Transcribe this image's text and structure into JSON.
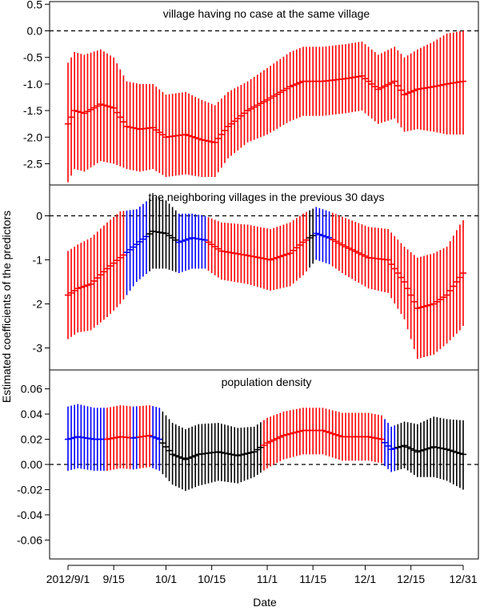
{
  "figure": {
    "ylabel": "Estimated coefficients of the predictors",
    "xlabel": "Date",
    "x_ticks": [
      {
        "day": 0,
        "label": "2012/9/1"
      },
      {
        "day": 14,
        "label": "9/15"
      },
      {
        "day": 30,
        "label": "10/1"
      },
      {
        "day": 44,
        "label": "10/15"
      },
      {
        "day": 61,
        "label": "11/1"
      },
      {
        "day": 75,
        "label": "11/15"
      },
      {
        "day": 91,
        "label": "12/1"
      },
      {
        "day": 105,
        "label": "12/15"
      },
      {
        "day": 121,
        "label": "12/31"
      }
    ],
    "colors": {
      "significant": "#ff0000",
      "marginal": "#0000ff",
      "nonsignificant": "#000000"
    }
  },
  "chart_data": [
    {
      "type": "errorbar",
      "title": "village having no case at the same village",
      "x_unit": "date (2012/9/1 – 12/31)",
      "ylim": [
        -2.9,
        0.55
      ],
      "yticks": [
        0.5,
        0.0,
        -0.5,
        -1.0,
        -1.5,
        -2.0,
        -2.5
      ],
      "ytick_labels": [
        "0.5",
        "0.0",
        "-0.5",
        "-1.0",
        "-1.5",
        "-2.0",
        "-2.5"
      ],
      "reference_line": 0,
      "knots": [
        {
          "day": 0,
          "est": -1.75,
          "lo": -2.85,
          "hi": -0.6
        },
        {
          "day": 2,
          "est": -1.5,
          "lo": -2.6,
          "hi": -0.4
        },
        {
          "day": 5,
          "est": -1.55,
          "lo": -2.65,
          "hi": -0.45
        },
        {
          "day": 10,
          "est": -1.38,
          "lo": -2.45,
          "hi": -0.35
        },
        {
          "day": 14,
          "est": -1.45,
          "lo": -2.5,
          "hi": -0.5
        },
        {
          "day": 18,
          "est": -1.8,
          "lo": -2.6,
          "hi": -0.95
        },
        {
          "day": 22,
          "est": -1.85,
          "lo": -2.65,
          "hi": -1.0
        },
        {
          "day": 26,
          "est": -1.82,
          "lo": -2.6,
          "hi": -1.0
        },
        {
          "day": 30,
          "est": -2.0,
          "lo": -2.75,
          "hi": -1.2
        },
        {
          "day": 36,
          "est": -1.95,
          "lo": -2.7,
          "hi": -1.15
        },
        {
          "day": 41,
          "est": -2.05,
          "lo": -2.75,
          "hi": -1.3
        },
        {
          "day": 45,
          "est": -2.1,
          "lo": -2.75,
          "hi": -1.4
        },
        {
          "day": 49,
          "est": -1.8,
          "lo": -2.4,
          "hi": -1.15
        },
        {
          "day": 55,
          "est": -1.5,
          "lo": -2.1,
          "hi": -0.95
        },
        {
          "day": 61,
          "est": -1.3,
          "lo": -1.95,
          "hi": -0.7
        },
        {
          "day": 68,
          "est": -1.05,
          "lo": -1.7,
          "hi": -0.4
        },
        {
          "day": 72,
          "est": -0.95,
          "lo": -1.6,
          "hi": -0.3
        },
        {
          "day": 78,
          "est": -0.95,
          "lo": -1.6,
          "hi": -0.3
        },
        {
          "day": 85,
          "est": -0.9,
          "lo": -1.55,
          "hi": -0.25
        },
        {
          "day": 90,
          "est": -0.85,
          "lo": -1.5,
          "hi": -0.2
        },
        {
          "day": 95,
          "est": -1.1,
          "lo": -1.75,
          "hi": -0.45
        },
        {
          "day": 100,
          "est": -0.95,
          "lo": -1.65,
          "hi": -0.3
        },
        {
          "day": 103,
          "est": -1.2,
          "lo": -1.9,
          "hi": -0.5
        },
        {
          "day": 107,
          "est": -1.1,
          "lo": -1.85,
          "hi": -0.35
        },
        {
          "day": 112,
          "est": -1.05,
          "lo": -1.9,
          "hi": -0.2
        },
        {
          "day": 116,
          "est": -1.0,
          "lo": -1.95,
          "hi": -0.05
        },
        {
          "day": 121,
          "est": -0.95,
          "lo": -1.95,
          "hi": 0.0
        }
      ],
      "color_segments": [
        {
          "from": 0,
          "to": 121,
          "color": "significant"
        }
      ]
    },
    {
      "type": "errorbar",
      "title": "the neighboring villages in the previous 30 days",
      "x_unit": "date (2012/9/1 – 12/31)",
      "ylim": [
        -3.5,
        0.7
      ],
      "yticks": [
        0,
        -1,
        -2,
        -3
      ],
      "ytick_labels": [
        "0",
        "-1",
        "-2",
        "-3"
      ],
      "reference_line": 0,
      "knots": [
        {
          "day": 0,
          "est": -1.8,
          "lo": -2.8,
          "hi": -0.8
        },
        {
          "day": 3,
          "est": -1.65,
          "lo": -2.65,
          "hi": -0.65
        },
        {
          "day": 7,
          "est": -1.55,
          "lo": -2.6,
          "hi": -0.5
        },
        {
          "day": 12,
          "est": -1.2,
          "lo": -2.3,
          "hi": -0.15
        },
        {
          "day": 16,
          "est": -0.95,
          "lo": -2.0,
          "hi": 0.1
        },
        {
          "day": 21,
          "est": -0.65,
          "lo": -1.5,
          "hi": 0.15
        },
        {
          "day": 26,
          "est": -0.35,
          "lo": -1.2,
          "hi": 0.45
        },
        {
          "day": 30,
          "est": -0.4,
          "lo": -1.2,
          "hi": 0.35
        },
        {
          "day": 34,
          "est": -0.6,
          "lo": -1.3,
          "hi": 0.05
        },
        {
          "day": 38,
          "est": -0.5,
          "lo": -1.2,
          "hi": 0.05
        },
        {
          "day": 42,
          "est": -0.55,
          "lo": -1.2,
          "hi": 0.0
        },
        {
          "day": 47,
          "est": -0.8,
          "lo": -1.45,
          "hi": -0.15
        },
        {
          "day": 55,
          "est": -0.9,
          "lo": -1.55,
          "hi": -0.2
        },
        {
          "day": 62,
          "est": -1.0,
          "lo": -1.7,
          "hi": -0.3
        },
        {
          "day": 68,
          "est": -0.85,
          "lo": -1.6,
          "hi": -0.15
        },
        {
          "day": 72,
          "est": -0.6,
          "lo": -1.35,
          "hi": 0.05
        },
        {
          "day": 76,
          "est": -0.4,
          "lo": -1.0,
          "hi": 0.2
        },
        {
          "day": 80,
          "est": -0.5,
          "lo": -1.1,
          "hi": 0.1
        },
        {
          "day": 85,
          "est": -0.7,
          "lo": -1.35,
          "hi": -0.05
        },
        {
          "day": 92,
          "est": -0.95,
          "lo": -1.65,
          "hi": -0.25
        },
        {
          "day": 98,
          "est": -1.0,
          "lo": -1.75,
          "hi": -0.3
        },
        {
          "day": 103,
          "est": -1.5,
          "lo": -2.35,
          "hi": -0.7
        },
        {
          "day": 107,
          "est": -2.1,
          "lo": -3.25,
          "hi": -0.95
        },
        {
          "day": 112,
          "est": -2.0,
          "lo": -3.15,
          "hi": -0.85
        },
        {
          "day": 116,
          "est": -1.8,
          "lo": -2.9,
          "hi": -0.7
        },
        {
          "day": 120,
          "est": -1.4,
          "lo": -2.6,
          "hi": -0.2
        },
        {
          "day": 121,
          "est": -1.3,
          "lo": -2.5,
          "hi": -0.1
        }
      ],
      "color_segments": [
        {
          "from": 0,
          "to": 17,
          "color": "significant"
        },
        {
          "from": 18,
          "to": 24,
          "color": "marginal"
        },
        {
          "from": 25,
          "to": 33,
          "color": "nonsignificant"
        },
        {
          "from": 34,
          "to": 42,
          "color": "marginal"
        },
        {
          "from": 43,
          "to": 73,
          "color": "significant"
        },
        {
          "from": 74,
          "to": 75,
          "color": "nonsignificant"
        },
        {
          "from": 76,
          "to": 80,
          "color": "marginal"
        },
        {
          "from": 81,
          "to": 121,
          "color": "significant"
        }
      ]
    },
    {
      "type": "errorbar",
      "title": "population density",
      "x_unit": "date (2012/9/1 – 12/31)",
      "ylim": [
        -0.075,
        0.075
      ],
      "yticks": [
        0.06,
        0.04,
        0.02,
        0.0,
        -0.02,
        -0.04,
        -0.06
      ],
      "ytick_labels": [
        "0.06",
        "0.04",
        "0.02",
        "0.00",
        "-0.02",
        "-0.04",
        "-0.06"
      ],
      "reference_line": 0,
      "knots": [
        {
          "day": 0,
          "est": 0.02,
          "lo": -0.005,
          "hi": 0.046
        },
        {
          "day": 3,
          "est": 0.022,
          "lo": -0.003,
          "hi": 0.048
        },
        {
          "day": 8,
          "est": 0.02,
          "lo": -0.005,
          "hi": 0.045
        },
        {
          "day": 12,
          "est": 0.02,
          "lo": -0.005,
          "hi": 0.045
        },
        {
          "day": 16,
          "est": 0.022,
          "lo": -0.003,
          "hi": 0.047
        },
        {
          "day": 20,
          "est": 0.021,
          "lo": -0.004,
          "hi": 0.046
        },
        {
          "day": 25,
          "est": 0.023,
          "lo": -0.002,
          "hi": 0.047
        },
        {
          "day": 28,
          "est": 0.02,
          "lo": -0.005,
          "hi": 0.045
        },
        {
          "day": 32,
          "est": 0.008,
          "lo": -0.016,
          "hi": 0.033
        },
        {
          "day": 36,
          "est": 0.004,
          "lo": -0.021,
          "hi": 0.028
        },
        {
          "day": 40,
          "est": 0.008,
          "lo": -0.017,
          "hi": 0.032
        },
        {
          "day": 46,
          "est": 0.01,
          "lo": -0.013,
          "hi": 0.033
        },
        {
          "day": 52,
          "est": 0.007,
          "lo": -0.015,
          "hi": 0.029
        },
        {
          "day": 57,
          "est": 0.01,
          "lo": -0.01,
          "hi": 0.03
        },
        {
          "day": 61,
          "est": 0.017,
          "lo": -0.003,
          "hi": 0.037
        },
        {
          "day": 66,
          "est": 0.023,
          "lo": 0.004,
          "hi": 0.042
        },
        {
          "day": 72,
          "est": 0.027,
          "lo": 0.008,
          "hi": 0.045
        },
        {
          "day": 78,
          "est": 0.027,
          "lo": 0.008,
          "hi": 0.045
        },
        {
          "day": 84,
          "est": 0.022,
          "lo": 0.003,
          "hi": 0.041
        },
        {
          "day": 92,
          "est": 0.022,
          "lo": 0.003,
          "hi": 0.041
        },
        {
          "day": 96,
          "est": 0.02,
          "lo": 0.001,
          "hi": 0.039
        },
        {
          "day": 99,
          "est": 0.012,
          "lo": -0.006,
          "hi": 0.03
        },
        {
          "day": 103,
          "est": 0.015,
          "lo": -0.003,
          "hi": 0.034
        },
        {
          "day": 107,
          "est": 0.01,
          "lo": -0.01,
          "hi": 0.032
        },
        {
          "day": 112,
          "est": 0.014,
          "lo": -0.01,
          "hi": 0.038
        },
        {
          "day": 116,
          "est": 0.012,
          "lo": -0.013,
          "hi": 0.036
        },
        {
          "day": 121,
          "est": 0.008,
          "lo": -0.02,
          "hi": 0.035
        }
      ],
      "color_segments": [
        {
          "from": 0,
          "to": 11,
          "color": "marginal"
        },
        {
          "from": 12,
          "to": 19,
          "color": "significant"
        },
        {
          "from": 20,
          "to": 21,
          "color": "marginal"
        },
        {
          "from": 22,
          "to": 25,
          "color": "significant"
        },
        {
          "from": 26,
          "to": 28,
          "color": "marginal"
        },
        {
          "from": 29,
          "to": 59,
          "color": "nonsignificant"
        },
        {
          "from": 60,
          "to": 96,
          "color": "significant"
        },
        {
          "from": 97,
          "to": 100,
          "color": "marginal"
        },
        {
          "from": 101,
          "to": 121,
          "color": "nonsignificant"
        }
      ]
    }
  ]
}
